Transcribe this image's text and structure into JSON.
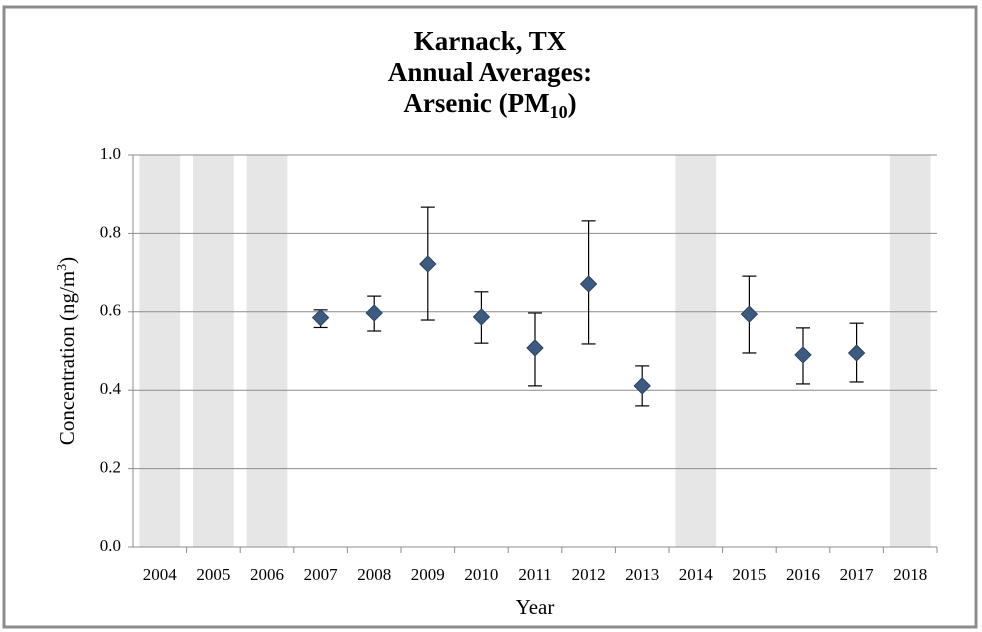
{
  "chart_data": {
    "type": "errorbar",
    "title_lines": [
      [
        "Karnack, TX"
      ],
      [
        "Annual Averages:"
      ],
      [
        "Arsenic (PM",
        "10",
        ")"
      ]
    ],
    "x_label": "Year",
    "y_label_parts": [
      "Concentration (ng/m",
      "3",
      ")"
    ],
    "categories": [
      "2004",
      "2005",
      "2006",
      "2007",
      "2008",
      "2009",
      "2010",
      "2011",
      "2012",
      "2013",
      "2014",
      "2015",
      "2016",
      "2017",
      "2018"
    ],
    "values": [
      null,
      null,
      null,
      0.585,
      0.597,
      0.722,
      0.587,
      0.508,
      0.671,
      0.411,
      null,
      0.594,
      0.49,
      0.495,
      null
    ],
    "yerr_upper": [
      null,
      null,
      null,
      0.02,
      0.043,
      0.145,
      0.064,
      0.089,
      0.161,
      0.051,
      null,
      0.097,
      0.069,
      0.076,
      null
    ],
    "yerr_lower": [
      null,
      null,
      null,
      0.025,
      0.046,
      0.143,
      0.067,
      0.097,
      0.153,
      0.051,
      null,
      0.099,
      0.074,
      0.074,
      null
    ],
    "color": "#3d5a80",
    "missing_shading_color": "#e6e6e6",
    "ylim": [
      0,
      1
    ],
    "yticks": [
      {
        "value": 0,
        "label": "0.0"
      },
      0.2,
      0.4,
      0.6,
      0.8,
      {
        "value": 1,
        "label": "1.0"
      }
    ],
    "grid": true
  }
}
